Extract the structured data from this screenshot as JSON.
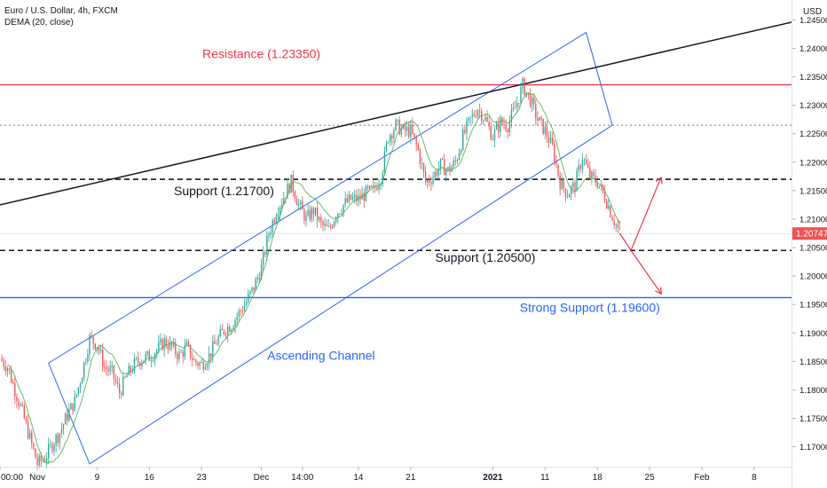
{
  "legend": {
    "symbol": "Euro / U.S. Dollar, 4h, FXCM",
    "indicator": "DEMA (20, close)"
  },
  "chart_data": {
    "type": "candlestick",
    "currency_label": "USD",
    "ylim": [
      1.1665,
      1.2485
    ],
    "y_ticks": [
      1.17,
      1.175,
      1.18,
      1.185,
      1.19,
      1.195,
      1.2,
      1.205,
      1.21,
      1.215,
      1.22,
      1.225,
      1.23,
      1.235,
      1.24,
      1.245
    ],
    "x_ticks": [
      {
        "label": "00:00",
        "x": 0
      },
      {
        "label": "Nov",
        "x": 5
      },
      {
        "label": "9",
        "x": 13
      },
      {
        "label": "16",
        "x": 20
      },
      {
        "label": "23",
        "x": 27
      },
      {
        "label": "Dec",
        "x": 35
      },
      {
        "label": "14:00",
        "x": 40.5
      },
      {
        "label": "14",
        "x": 48
      },
      {
        "label": "21",
        "x": 55
      },
      {
        "label": "2021",
        "x": 66
      },
      {
        "label": "11",
        "x": 73
      },
      {
        "label": "18",
        "x": 80
      },
      {
        "label": "25",
        "x": 87
      },
      {
        "label": "Feb",
        "x": 94
      },
      {
        "label": "8",
        "x": 101
      }
    ],
    "x_range": [
      0,
      106
    ],
    "last_price": "1.20747",
    "last_price_value": 1.20747,
    "price_path": [
      [
        0,
        1.1855
      ],
      [
        1,
        1.184
      ],
      [
        2,
        1.18
      ],
      [
        3,
        1.176
      ],
      [
        4,
        1.1715
      ],
      [
        5,
        1.167
      ],
      [
        6,
        1.168
      ],
      [
        7,
        1.1705
      ],
      [
        8,
        1.1725
      ],
      [
        9,
        1.1755
      ],
      [
        10,
        1.178
      ],
      [
        11,
        1.183
      ],
      [
        12,
        1.189
      ],
      [
        13,
        1.188
      ],
      [
        14,
        1.184
      ],
      [
        15,
        1.183
      ],
      [
        16,
        1.1795
      ],
      [
        17,
        1.1825
      ],
      [
        18,
        1.1845
      ],
      [
        19,
        1.1855
      ],
      [
        20,
        1.1858
      ],
      [
        21,
        1.187
      ],
      [
        22,
        1.1885
      ],
      [
        23,
        1.1875
      ],
      [
        24,
        1.186
      ],
      [
        25,
        1.1875
      ],
      [
        26,
        1.185
      ],
      [
        27,
        1.1845
      ],
      [
        28,
        1.186
      ],
      [
        29,
        1.1885
      ],
      [
        30,
        1.1905
      ],
      [
        31,
        1.1915
      ],
      [
        32,
        1.1935
      ],
      [
        33,
        1.1955
      ],
      [
        34,
        1.198
      ],
      [
        35,
        1.2015
      ],
      [
        36,
        1.2075
      ],
      [
        37,
        1.2115
      ],
      [
        38,
        1.214
      ],
      [
        39,
        1.2165
      ],
      [
        40,
        1.2125
      ],
      [
        41,
        1.21
      ],
      [
        42,
        1.2115
      ],
      [
        43,
        1.209
      ],
      [
        44,
        1.208
      ],
      [
        45,
        1.211
      ],
      [
        46,
        1.2125
      ],
      [
        47,
        1.2135
      ],
      [
        48,
        1.2135
      ],
      [
        49,
        1.2145
      ],
      [
        50,
        1.215
      ],
      [
        51,
        1.2175
      ],
      [
        52,
        1.2245
      ],
      [
        53,
        1.2265
      ],
      [
        54,
        1.2255
      ],
      [
        55,
        1.2255
      ],
      [
        56,
        1.222
      ],
      [
        57,
        1.2165
      ],
      [
        58,
        1.2175
      ],
      [
        59,
        1.2195
      ],
      [
        60,
        1.2185
      ],
      [
        61,
        1.22
      ],
      [
        62,
        1.2245
      ],
      [
        63,
        1.2275
      ],
      [
        64,
        1.2295
      ],
      [
        65,
        1.2275
      ],
      [
        66,
        1.2245
      ],
      [
        67,
        1.227
      ],
      [
        68,
        1.2265
      ],
      [
        69,
        1.2295
      ],
      [
        70,
        1.2335
      ],
      [
        71,
        1.231
      ],
      [
        72,
        1.2275
      ],
      [
        73,
        1.2255
      ],
      [
        74,
        1.2225
      ],
      [
        75,
        1.2165
      ],
      [
        76,
        1.2145
      ],
      [
        77,
        1.216
      ],
      [
        78,
        1.221
      ],
      [
        79,
        1.2175
      ],
      [
        80,
        1.2165
      ],
      [
        81,
        1.214
      ],
      [
        82,
        1.2105
      ],
      [
        83,
        1.2075
      ]
    ],
    "projection": [
      [
        83,
        1.2075
      ],
      [
        84.5,
        1.2045
      ],
      [
        88.5,
        1.2172
      ]
    ],
    "projection_alt": [
      [
        84.5,
        1.2045
      ],
      [
        88.5,
        1.197
      ]
    ],
    "annotations": [
      {
        "text": "Resistance (1.23350)",
        "x": 35,
        "y": 1.2383,
        "color": "#f23645"
      },
      {
        "text": "Support (1.21700)",
        "x": 30,
        "y": 1.2142,
        "color": "#131722"
      },
      {
        "text": "Support (1.20500)",
        "x": 65,
        "y": 1.2025,
        "color": "#131722"
      },
      {
        "text": "Strong Support (1.19600)",
        "x": 79,
        "y": 1.1937,
        "color": "#2962ff"
      },
      {
        "text": "Ascending Channel",
        "x": 43,
        "y": 1.1853,
        "color": "#2962ff"
      }
    ],
    "levels": [
      {
        "name": "resistance",
        "y": 1.2336,
        "style": "solid",
        "color": "#f23645"
      },
      {
        "name": "support-upper",
        "y": 1.2265,
        "style": "dotted",
        "color": "#787b86"
      },
      {
        "name": "support-121700",
        "y": 1.217,
        "style": "dashed",
        "color": "#131722"
      },
      {
        "name": "support-120500",
        "y": 1.2045,
        "style": "dashed",
        "color": "#131722"
      },
      {
        "name": "strong-support",
        "y": 1.1962,
        "style": "solid",
        "color": "#2962ff"
      }
    ],
    "trendline": [
      [
        0,
        1.2125
      ],
      [
        106,
        1.2446
      ]
    ],
    "channel": [
      [
        6.5,
        1.1847
      ],
      [
        78.5,
        1.2428
      ],
      [
        82,
        1.2265
      ],
      [
        12,
        1.167
      ]
    ],
    "colors": {
      "up": "#26a69a",
      "down": "#ef5350",
      "dema": "#4caf50",
      "channel": "#2962ff",
      "trendline": "#131722"
    }
  }
}
